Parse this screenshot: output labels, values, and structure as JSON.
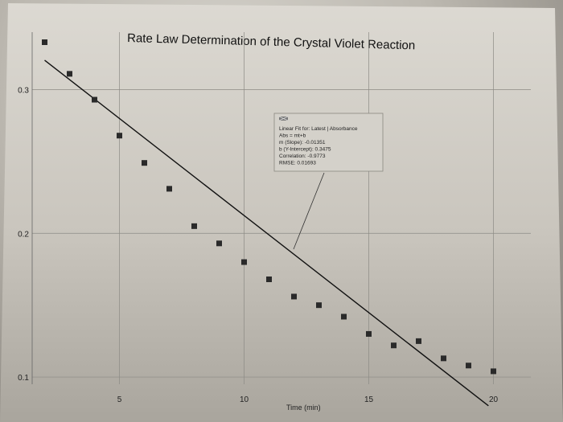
{
  "chart_data": {
    "type": "scatter",
    "title": "Rate Law Determination of the Crystal Violet Reaction",
    "xlabel": "Time (min)",
    "ylabel": "",
    "xlim": [
      1.5,
      21.5
    ],
    "ylim": [
      0.095,
      0.34
    ],
    "x_ticks": [
      5,
      10,
      15,
      20
    ],
    "y_ticks": [
      0.1,
      0.2,
      0.3
    ],
    "grid": true,
    "series": [
      {
        "points": [
          [
            2,
            0.333
          ],
          [
            3,
            0.311
          ],
          [
            4,
            0.293
          ],
          [
            5,
            0.268
          ],
          [
            6,
            0.249
          ],
          [
            7,
            0.231
          ],
          [
            8,
            0.205
          ],
          [
            9,
            0.193
          ],
          [
            10,
            0.18
          ],
          [
            11,
            0.168
          ],
          [
            12,
            0.156
          ],
          [
            13,
            0.15
          ],
          [
            14,
            0.142
          ],
          [
            15,
            0.13
          ],
          [
            16,
            0.122
          ],
          [
            17,
            0.125
          ],
          [
            18,
            0.113
          ],
          [
            19,
            0.108
          ],
          [
            20,
            0.104
          ]
        ]
      }
    ],
    "fit_line": {
      "slope": -0.01351,
      "intercept": 0.3475,
      "x_range": [
        2,
        19.8
      ]
    },
    "annotation": {
      "lines": [
        "Linear Fit for: Latest | Absorbance",
        "Abs = mt+b",
        "m (Slope): -0.01351",
        "b (Y-Intercept): 0.3475",
        "Correlation: -0.9773",
        "RMSE: 0.01693"
      ]
    }
  }
}
